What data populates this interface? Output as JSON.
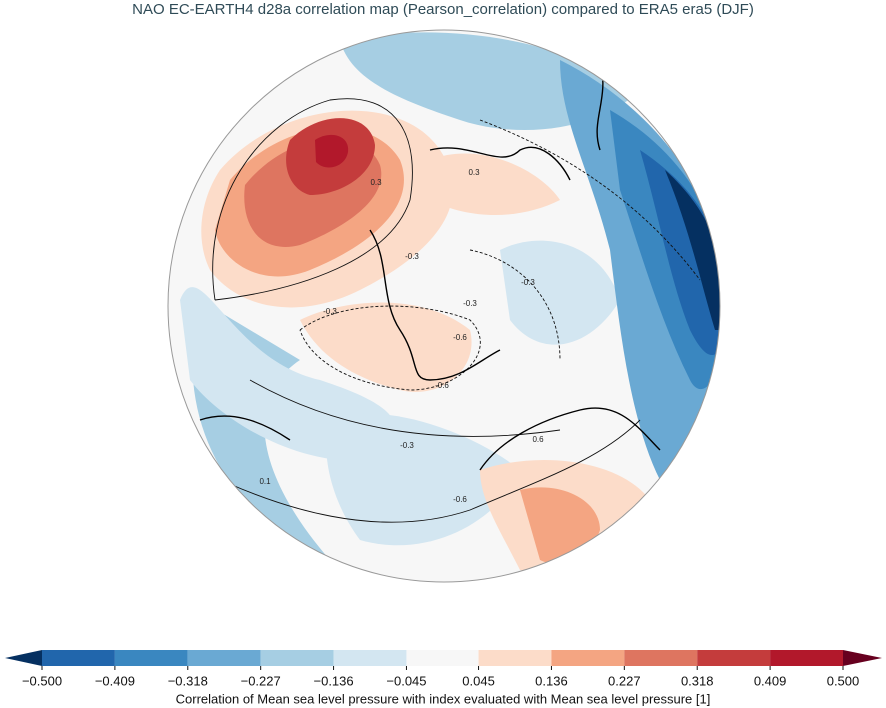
{
  "chart_data": {
    "type": "colorbar",
    "title": "NAO EC-EARTH4 d28a correlation map (Pearson_correlation) compared to ERA5 era5 (DJF)",
    "colorbar_label": "Correlation of Mean sea level pressure with index evaluated with Mean sea level pressure [1]",
    "xlim": [
      -0.5,
      0.5
    ],
    "xticks": [
      {
        "value": -0.5,
        "label": "−0.500"
      },
      {
        "value": -0.409,
        "label": "−0.409"
      },
      {
        "value": -0.318,
        "label": "−0.318"
      },
      {
        "value": -0.227,
        "label": "−0.227"
      },
      {
        "value": -0.136,
        "label": "−0.136"
      },
      {
        "value": -0.045,
        "label": "−0.045"
      },
      0.045,
      0.136,
      0.227,
      0.318,
      0.409,
      {
        "value": 0.5,
        "label": "0.500"
      }
    ],
    "colors": [
      "#2166ac",
      "#3a87c0",
      "#6aa9d3",
      "#a6cee3",
      "#d3e6f1",
      "#f7f7f7",
      "#fcdcc9",
      "#f4a582",
      "#de7560",
      "#c43c3c",
      "#b2182b"
    ],
    "extend_colors": [
      "#053061",
      "#67001f"
    ],
    "contour_labels": [
      0.3,
      -0.3,
      -0.3,
      -0.3,
      -0.6,
      -0.6,
      -0.3,
      0.1,
      -0.6,
      0.6,
      -0.3,
      0.3
    ]
  }
}
